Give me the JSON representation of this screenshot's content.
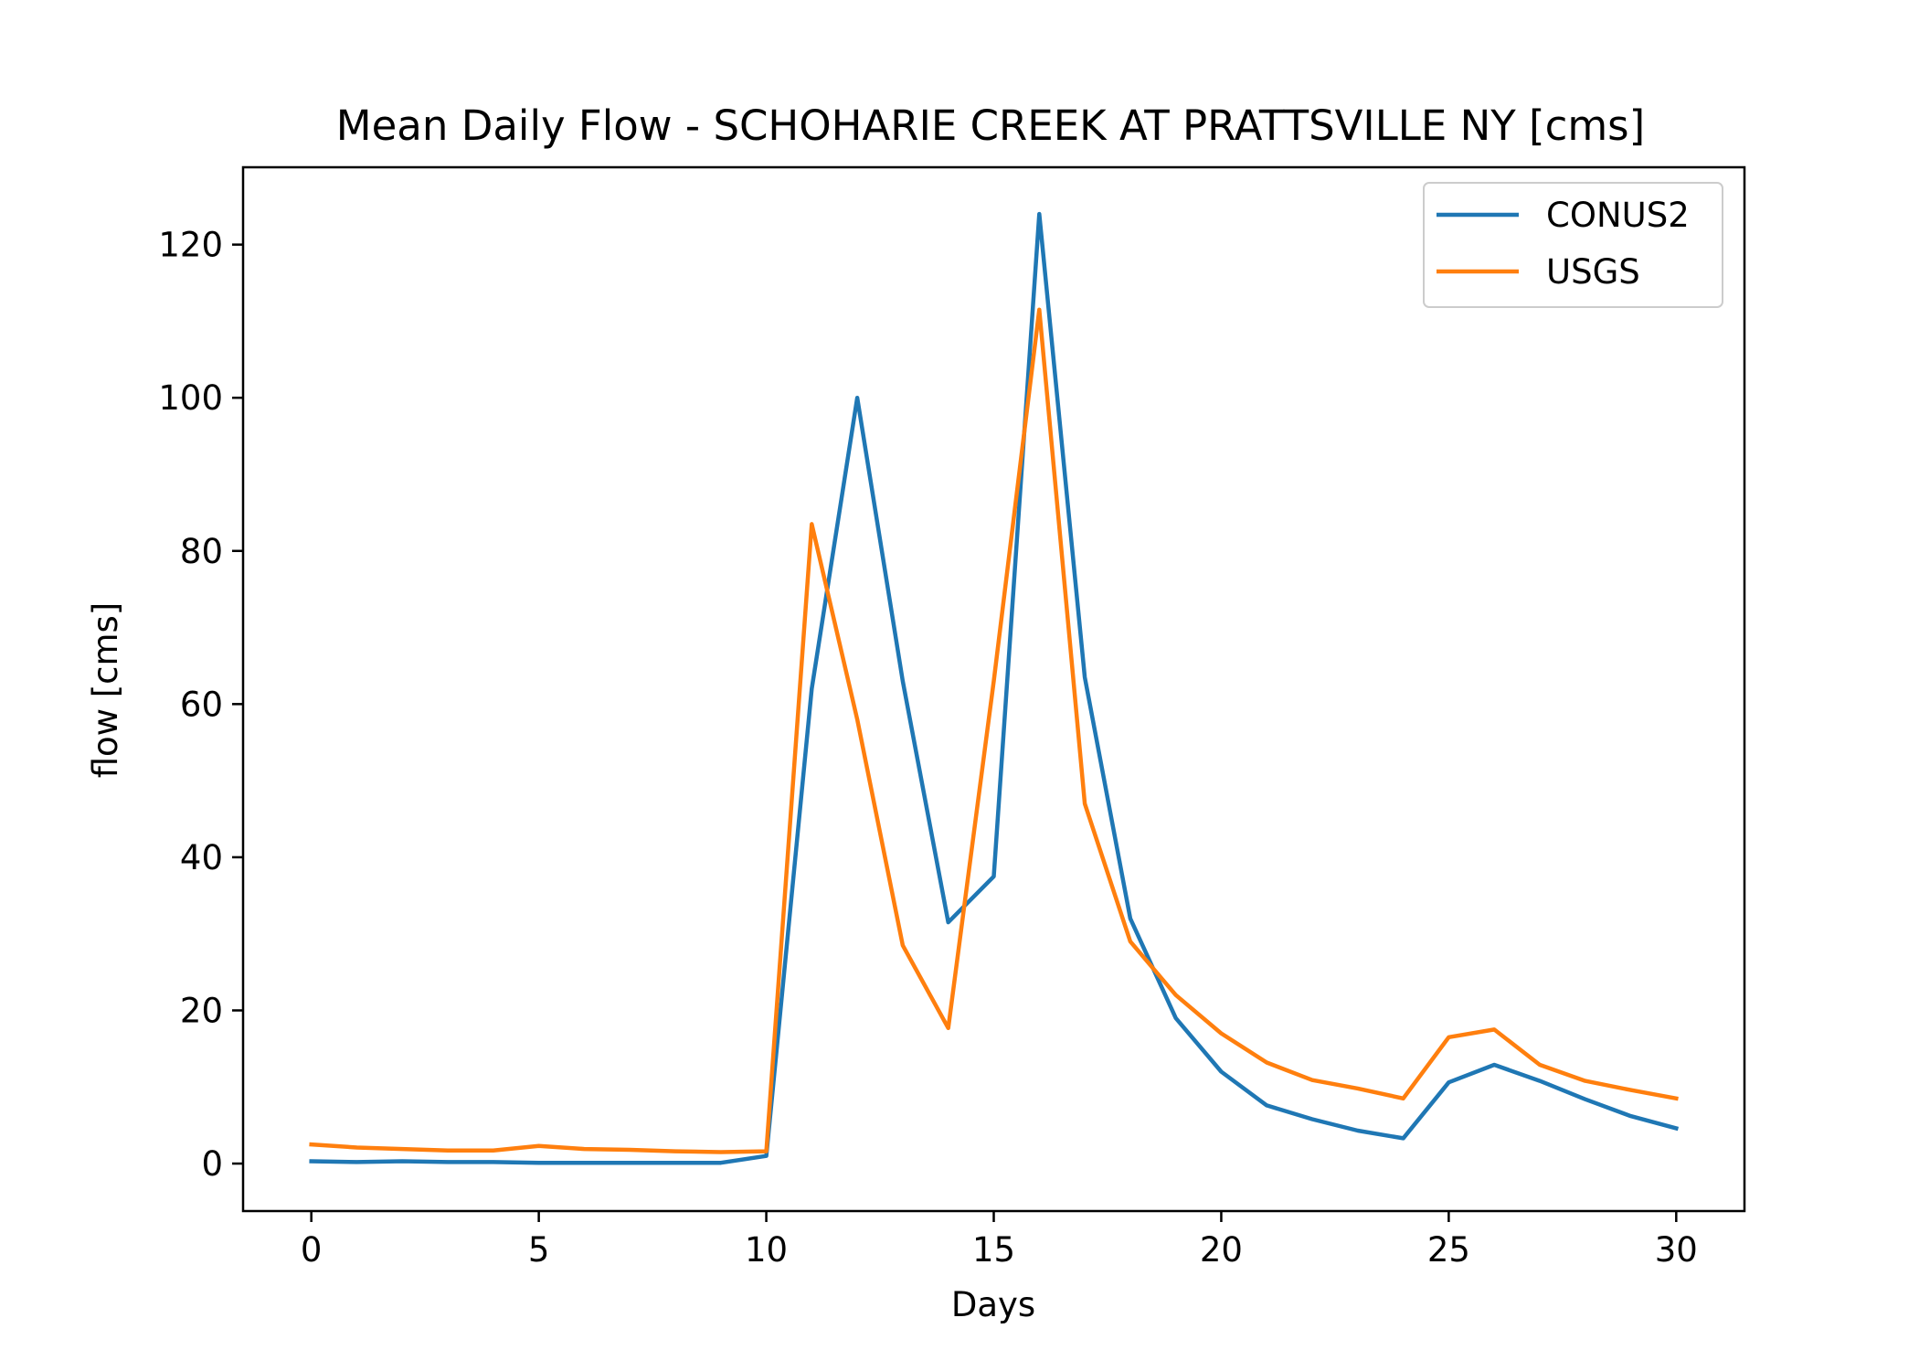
{
  "chart_data": {
    "type": "line",
    "title": "Mean Daily Flow - SCHOHARIE CREEK AT PRATTSVILLE NY [cms]",
    "xlabel": "Days",
    "ylabel": "flow [cms]",
    "xlim": [
      -1.5,
      31.5
    ],
    "ylim": [
      -6.2,
      130.1
    ],
    "xticks": [
      0,
      5,
      10,
      15,
      20,
      25,
      30
    ],
    "yticks": [
      0,
      20,
      40,
      60,
      80,
      100,
      120
    ],
    "grid": false,
    "legend_position": "top-right",
    "x": [
      0,
      1,
      2,
      3,
      4,
      5,
      6,
      7,
      8,
      9,
      10,
      11,
      12,
      13,
      14,
      15,
      16,
      17,
      18,
      19,
      20,
      21,
      22,
      23,
      24,
      25,
      26,
      27,
      28,
      29,
      30
    ],
    "series": [
      {
        "name": "CONUS2",
        "color": "#1f77b4",
        "values": [
          0.3,
          0.2,
          0.3,
          0.2,
          0.2,
          0.1,
          0.1,
          0.1,
          0.1,
          0.1,
          1.0,
          62.0,
          100.0,
          63.0,
          31.5,
          37.5,
          124.0,
          63.5,
          32.0,
          19.0,
          12.0,
          7.6,
          5.8,
          4.3,
          3.3,
          10.6,
          12.9,
          10.8,
          8.4,
          6.2,
          4.6
        ]
      },
      {
        "name": "USGS",
        "color": "#ff7f0e",
        "values": [
          2.5,
          2.1,
          1.9,
          1.7,
          1.7,
          2.3,
          1.9,
          1.8,
          1.6,
          1.5,
          1.6,
          83.5,
          58.0,
          28.5,
          17.7,
          63.0,
          111.5,
          47.0,
          29.0,
          22.0,
          17.0,
          13.2,
          10.9,
          9.8,
          8.5,
          16.5,
          17.5,
          12.9,
          10.8,
          9.6,
          8.5
        ]
      }
    ]
  }
}
